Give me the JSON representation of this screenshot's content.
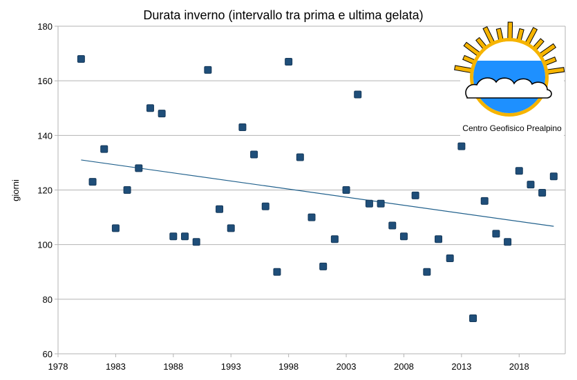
{
  "chart_data": {
    "type": "scatter",
    "title": "Durata inverno (intervallo tra prima e ultima gelata)",
    "xlabel": "",
    "ylabel": "giorni",
    "xlim": [
      1978,
      2022
    ],
    "ylim": [
      60,
      180
    ],
    "x_ticks": [
      1978,
      1983,
      1988,
      1993,
      1998,
      2003,
      2008,
      2013,
      2018
    ],
    "y_ticks": [
      60,
      80,
      100,
      120,
      140,
      160,
      180
    ],
    "grid": "horizontal",
    "series": [
      {
        "points": [
          [
            1980,
            168
          ],
          [
            1981,
            123
          ],
          [
            1982,
            135
          ],
          [
            1983,
            106
          ],
          [
            1984,
            120
          ],
          [
            1985,
            128
          ],
          [
            1986,
            150
          ],
          [
            1987,
            148
          ],
          [
            1988,
            103
          ],
          [
            1989,
            103
          ],
          [
            1990,
            101
          ],
          [
            1991,
            164
          ],
          [
            1992,
            113
          ],
          [
            1993,
            106
          ],
          [
            1994,
            143
          ],
          [
            1995,
            133
          ],
          [
            1996,
            114
          ],
          [
            1997,
            90
          ],
          [
            1998,
            167
          ],
          [
            1999,
            132
          ],
          [
            2000,
            110
          ],
          [
            2001,
            92
          ],
          [
            2002,
            102
          ],
          [
            2003,
            120
          ],
          [
            2004,
            155
          ],
          [
            2005,
            115
          ],
          [
            2006,
            115
          ],
          [
            2007,
            107
          ],
          [
            2008,
            103
          ],
          [
            2009,
            118
          ],
          [
            2010,
            90
          ],
          [
            2011,
            102
          ],
          [
            2012,
            95
          ],
          [
            2013,
            136
          ],
          [
            2014,
            73
          ],
          [
            2015,
            116
          ],
          [
            2016,
            104
          ],
          [
            2017,
            101
          ],
          [
            2018,
            127
          ],
          [
            2019,
            122
          ],
          [
            2020,
            119
          ],
          [
            2021,
            125
          ]
        ],
        "color": "#1f4e79"
      }
    ],
    "trendline": {
      "x": [
        1980,
        2021
      ],
      "y": [
        131,
        106.7
      ],
      "color": "#1f5f8b"
    }
  },
  "logo": {
    "text": "Centro Geofisico Prealpino"
  }
}
